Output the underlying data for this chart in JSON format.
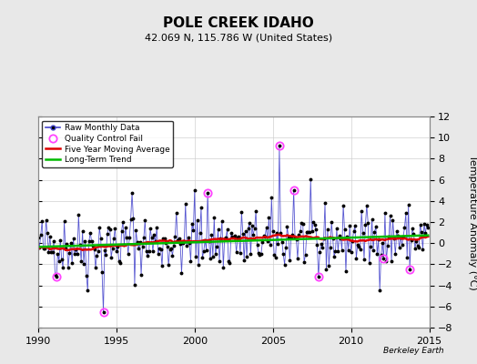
{
  "title": "POLE CREEK IDAHO",
  "subtitle": "42.069 N, 115.786 W (United States)",
  "ylabel": "Temperature Anomaly (°C)",
  "watermark": "Berkeley Earth",
  "x_start": 1990,
  "x_end": 2015,
  "ylim": [
    -8,
    12
  ],
  "yticks": [
    -8,
    -6,
    -4,
    -2,
    0,
    2,
    4,
    6,
    8,
    10,
    12
  ],
  "xticks": [
    1990,
    1995,
    2000,
    2005,
    2010,
    2015
  ],
  "background_color": "#e8e8e8",
  "plot_bg_color": "#ffffff",
  "raw_line_color": "#4444cc",
  "raw_dot_color": "#000000",
  "ma_color": "#dd0000",
  "trend_color": "#00bb00",
  "qc_fail_color": "#ff44ff",
  "grid_color": "#cccccc",
  "title_fontsize": 11,
  "subtitle_fontsize": 8,
  "tick_fontsize": 8,
  "ylabel_fontsize": 8
}
